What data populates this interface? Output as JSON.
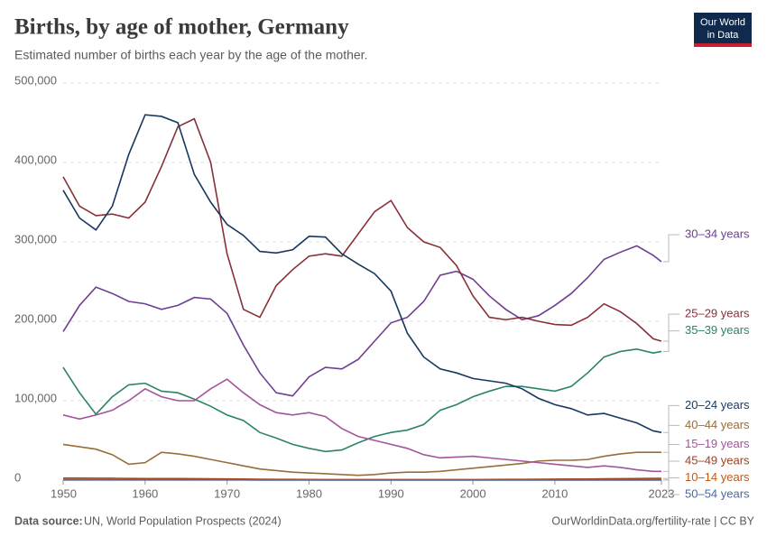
{
  "chart_data": {
    "type": "line",
    "title": "Births, by age of mother, Germany",
    "subtitle": "Estimated number of births each year by the age of the mother.",
    "source_label": "Data source:",
    "source": "UN, World Population Prospects (2024)",
    "url": "OurWorldinData.org/fertility-rate | CC BY",
    "logo": [
      "Our World",
      "in Data"
    ],
    "x": [
      1950,
      1952,
      1954,
      1956,
      1958,
      1960,
      1962,
      1964,
      1966,
      1968,
      1970,
      1972,
      1974,
      1976,
      1978,
      1980,
      1982,
      1984,
      1986,
      1988,
      1990,
      1992,
      1994,
      1996,
      1998,
      2000,
      2002,
      2004,
      2006,
      2008,
      2010,
      2012,
      2014,
      2016,
      2018,
      2020,
      2022,
      2023
    ],
    "xlim": [
      1950,
      2023
    ],
    "xticks": [
      1950,
      1960,
      1970,
      1980,
      1990,
      2000,
      2010,
      2023
    ],
    "ylim": [
      0,
      500000
    ],
    "yticks": [
      0,
      {
        "value": 100000,
        "label": "100,000"
      },
      {
        "value": 200000,
        "label": "200,000"
      },
      {
        "value": 300000,
        "label": "300,000"
      },
      {
        "value": 400000,
        "label": "400,000"
      },
      {
        "value": 500000,
        "label": "500,000"
      }
    ],
    "grid": true,
    "series": [
      {
        "name": "30–34 years",
        "color": "#6d3e91",
        "values": [
          187000,
          220000,
          243000,
          235000,
          225000,
          222000,
          215000,
          220000,
          230000,
          228000,
          210000,
          170000,
          135000,
          110000,
          106000,
          130000,
          142000,
          140000,
          152000,
          175000,
          198000,
          205000,
          225000,
          258000,
          263000,
          253000,
          232000,
          215000,
          202000,
          207000,
          220000,
          235000,
          255000,
          278000,
          287000,
          295000,
          283000,
          275000
        ]
      },
      {
        "name": "25–29 years",
        "color": "#883039",
        "values": [
          382000,
          345000,
          333000,
          335000,
          330000,
          350000,
          395000,
          445000,
          455000,
          400000,
          285000,
          215000,
          205000,
          245000,
          265000,
          282000,
          285000,
          282000,
          310000,
          338000,
          352000,
          318000,
          300000,
          293000,
          270000,
          232000,
          205000,
          202000,
          205000,
          200000,
          196000,
          195000,
          205000,
          222000,
          212000,
          197000,
          178000,
          175000
        ]
      },
      {
        "name": "35–39 years",
        "color": "#2c8465",
        "values": [
          142000,
          110000,
          83000,
          105000,
          120000,
          122000,
          112000,
          110000,
          102000,
          93000,
          82000,
          75000,
          60000,
          53000,
          45000,
          40000,
          36000,
          38000,
          47000,
          55000,
          60000,
          63000,
          70000,
          88000,
          95000,
          105000,
          112000,
          118000,
          118000,
          115000,
          112000,
          118000,
          135000,
          155000,
          162000,
          165000,
          160000,
          162000
        ]
      },
      {
        "name": "20–24 years",
        "color": "#18375f",
        "values": [
          365000,
          330000,
          315000,
          345000,
          410000,
          460000,
          458000,
          450000,
          385000,
          350000,
          322000,
          308000,
          288000,
          286000,
          290000,
          307000,
          306000,
          285000,
          272000,
          260000,
          238000,
          185000,
          155000,
          140000,
          135000,
          128000,
          125000,
          122000,
          115000,
          103000,
          95000,
          90000,
          82000,
          84000,
          78000,
          72000,
          62000,
          60000
        ]
      },
      {
        "name": "40–44 years",
        "color": "#996d39",
        "values": [
          45000,
          42000,
          39000,
          32000,
          20000,
          22000,
          35000,
          33000,
          30000,
          26000,
          22000,
          18000,
          14000,
          12000,
          10000,
          9000,
          8000,
          7000,
          6000,
          7000,
          9000,
          10000,
          10000,
          11000,
          13000,
          15000,
          17000,
          19000,
          21000,
          24000,
          25000,
          25000,
          26000,
          30000,
          33000,
          35000,
          35000,
          35000
        ]
      },
      {
        "name": "15–19 years",
        "color": "#a2559c",
        "values": [
          82000,
          77000,
          82000,
          88000,
          100000,
          115000,
          105000,
          100000,
          100000,
          115000,
          127000,
          110000,
          95000,
          85000,
          82000,
          85000,
          80000,
          65000,
          55000,
          50000,
          45000,
          40000,
          32000,
          28000,
          29000,
          30000,
          28000,
          26000,
          24000,
          22000,
          20000,
          18000,
          16000,
          18000,
          16000,
          13000,
          11000,
          11000
        ]
      },
      {
        "name": "45–49 years",
        "color": "#a2401f",
        "values": [
          2500,
          2500,
          2400,
          2300,
          2100,
          2000,
          2000,
          1900,
          1800,
          1700,
          1500,
          1300,
          1100,
          1000,
          900,
          800,
          700,
          700,
          600,
          600,
          600,
          600,
          600,
          600,
          700,
          700,
          800,
          900,
          1000,
          1100,
          1200,
          1300,
          1400,
          1600,
          1800,
          2000,
          2200,
          2200
        ]
      },
      {
        "name": "10–14 years",
        "color": "#c05917",
        "values": [
          500,
          500,
          500,
          500,
          500,
          500,
          500,
          500,
          500,
          500,
          500,
          500,
          400,
          400,
          400,
          400,
          300,
          300,
          300,
          300,
          300,
          300,
          300,
          300,
          300,
          300,
          300,
          300,
          300,
          300,
          300,
          300,
          300,
          300,
          300,
          300,
          300,
          300
        ]
      },
      {
        "name": "50–54 years",
        "color": "#4c6a9c",
        "values": [
          200,
          200,
          200,
          200,
          200,
          200,
          200,
          200,
          200,
          200,
          200,
          200,
          100,
          100,
          100,
          100,
          100,
          100,
          100,
          100,
          100,
          100,
          100,
          100,
          100,
          100,
          100,
          100,
          100,
          100,
          100,
          100,
          100,
          100,
          100,
          100,
          100,
          100
        ]
      }
    ]
  }
}
